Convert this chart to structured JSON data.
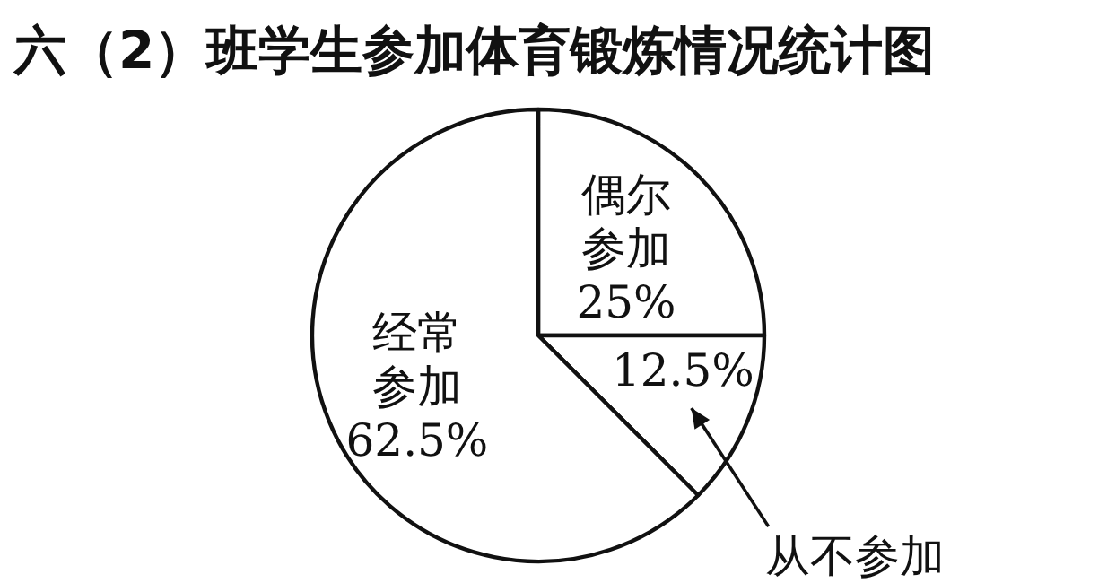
{
  "chart_data": {
    "type": "pie",
    "title": "六（2）班学生参加体育锻炼情况统计图",
    "categories": [
      "偶尔参加",
      "从不参加",
      "经常参加"
    ],
    "values": [
      25,
      12.5,
      62.5
    ],
    "value_labels": [
      "25%",
      "12.5%",
      "62.5%"
    ],
    "colors": [
      "#ffffff",
      "#ffffff",
      "#ffffff"
    ]
  }
}
